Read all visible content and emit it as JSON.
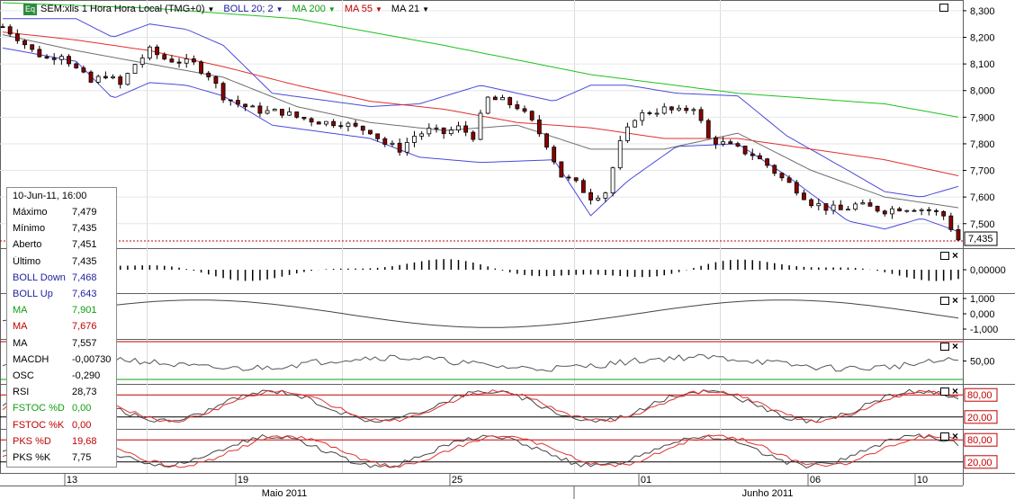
{
  "header": {
    "eq_badge": "Eq",
    "symbol_label": "SEM:xlis 1 Hora Hora Local (TMG+0)",
    "indicators": [
      {
        "label": "BOLL 20; 2",
        "color": "#1f1fa0"
      },
      {
        "label": "MA 200",
        "color": "#10a010"
      },
      {
        "label": "MA 55",
        "color": "#c00000"
      },
      {
        "label": "MA 21",
        "color": "#000000"
      }
    ]
  },
  "info_box": {
    "date": "10-Jun-11, 16:00",
    "rows": [
      {
        "label": "Máximo",
        "value": "7,479",
        "color": "#000000"
      },
      {
        "label": "Mínimo",
        "value": "7,435",
        "color": "#000000"
      },
      {
        "label": "Aberto",
        "value": "7,451",
        "color": "#000000"
      },
      {
        "label": "Último",
        "value": "7,435",
        "color": "#000000"
      },
      {
        "label": "BOLL Down",
        "value": "7,468",
        "color": "#1f1fa0"
      },
      {
        "label": "BOLL Up",
        "value": "7,643",
        "color": "#1f1fa0"
      },
      {
        "label": "MA",
        "value": "7,901",
        "color": "#10a010"
      },
      {
        "label": "MA",
        "value": "7,676",
        "color": "#c00000"
      },
      {
        "label": "MA",
        "value": "7,557",
        "color": "#000000"
      },
      {
        "label": "MACDH",
        "value": "-0,00730",
        "color": "#000000"
      },
      {
        "label": "OSC",
        "value": "-0,290",
        "color": "#000000"
      },
      {
        "label": "RSI",
        "value": "28,73",
        "color": "#000000"
      },
      {
        "label": "FSTOC %D",
        "value": "0,00",
        "color": "#10a010"
      },
      {
        "label": "FSTOC %K",
        "value": "0,00",
        "color": "#c00000"
      },
      {
        "label": "PKS %D",
        "value": "19,68",
        "color": "#c00000"
      },
      {
        "label": "PKS %K",
        "value": "7,75",
        "color": "#000000"
      }
    ]
  },
  "chart_data": [
    {
      "type": "candlestick",
      "panel": "price",
      "y_ticks": [
        "8,300",
        "8,200",
        "8,100",
        "8,000",
        "7,900",
        "7,800",
        "7,700",
        "7,600",
        "7,500"
      ],
      "ylim": [
        7.435,
        8.32
      ],
      "last_price_label": "7,435",
      "last_price": 7.435,
      "x_ticks": [
        "13",
        "19",
        "25",
        "01",
        "06",
        "10"
      ],
      "x_months": [
        "Maio 2011",
        "Junho 2011"
      ],
      "close_path": [
        [
          0,
          8.24
        ],
        [
          6,
          8.2
        ],
        [
          12,
          8.15
        ],
        [
          18,
          8.12
        ],
        [
          24,
          8.14
        ],
        [
          30,
          8.08
        ],
        [
          36,
          8.03
        ],
        [
          42,
          8.06
        ],
        [
          48,
          8.02
        ],
        [
          54,
          8.1
        ],
        [
          60,
          8.15
        ],
        [
          66,
          8.12
        ],
        [
          72,
          8.11
        ],
        [
          78,
          8.1
        ],
        [
          84,
          8.06
        ],
        [
          90,
          7.98
        ],
        [
          96,
          7.95
        ],
        [
          102,
          7.93
        ],
        [
          108,
          7.92
        ],
        [
          114,
          7.92
        ],
        [
          120,
          7.9
        ],
        [
          126,
          7.89
        ],
        [
          132,
          7.88
        ],
        [
          138,
          7.88
        ],
        [
          144,
          7.86
        ],
        [
          150,
          7.85
        ],
        [
          156,
          7.8
        ],
        [
          162,
          7.78
        ],
        [
          168,
          7.83
        ],
        [
          174,
          7.85
        ],
        [
          180,
          7.84
        ],
        [
          186,
          7.86
        ],
        [
          192,
          7.83
        ],
        [
          198,
          7.97
        ],
        [
          204,
          7.96
        ],
        [
          210,
          7.94
        ],
        [
          216,
          7.88
        ],
        [
          222,
          7.8
        ],
        [
          228,
          7.68
        ],
        [
          234,
          7.65
        ],
        [
          240,
          7.6
        ],
        [
          246,
          7.62
        ],
        [
          252,
          7.8
        ],
        [
          258,
          7.9
        ],
        [
          264,
          7.92
        ],
        [
          270,
          7.93
        ],
        [
          276,
          7.92
        ],
        [
          282,
          7.94
        ],
        [
          288,
          7.82
        ],
        [
          294,
          7.8
        ],
        [
          300,
          7.78
        ],
        [
          306,
          7.76
        ],
        [
          312,
          7.72
        ],
        [
          318,
          7.67
        ],
        [
          324,
          7.63
        ],
        [
          330,
          7.58
        ],
        [
          336,
          7.56
        ],
        [
          342,
          7.55
        ],
        [
          348,
          7.57
        ],
        [
          354,
          7.56
        ],
        [
          360,
          7.55
        ],
        [
          366,
          7.56
        ],
        [
          372,
          7.56
        ],
        [
          378,
          7.55
        ],
        [
          384,
          7.53
        ],
        [
          390,
          7.44
        ]
      ],
      "ma21": [
        [
          0,
          8.21
        ],
        [
          30,
          8.15
        ],
        [
          60,
          8.1
        ],
        [
          90,
          8.05
        ],
        [
          120,
          7.94
        ],
        [
          150,
          7.88
        ],
        [
          180,
          7.85
        ],
        [
          210,
          7.87
        ],
        [
          240,
          7.78
        ],
        [
          270,
          7.78
        ],
        [
          300,
          7.84
        ],
        [
          330,
          7.7
        ],
        [
          360,
          7.6
        ],
        [
          390,
          7.56
        ]
      ],
      "ma55": [
        [
          0,
          8.22
        ],
        [
          30,
          8.19
        ],
        [
          60,
          8.15
        ],
        [
          90,
          8.09
        ],
        [
          120,
          8.02
        ],
        [
          150,
          7.96
        ],
        [
          180,
          7.93
        ],
        [
          210,
          7.88
        ],
        [
          240,
          7.86
        ],
        [
          270,
          7.82
        ],
        [
          300,
          7.82
        ],
        [
          330,
          7.78
        ],
        [
          360,
          7.74
        ],
        [
          390,
          7.68
        ]
      ],
      "ma200": [
        [
          0,
          8.33
        ],
        [
          60,
          8.31
        ],
        [
          120,
          8.27
        ],
        [
          180,
          8.17
        ],
        [
          240,
          8.06
        ],
        [
          300,
          7.99
        ],
        [
          360,
          7.95
        ],
        [
          390,
          7.9
        ]
      ],
      "boll_up": [
        [
          0,
          8.27
        ],
        [
          30,
          8.27
        ],
        [
          45,
          8.2
        ],
        [
          60,
          8.25
        ],
        [
          75,
          8.23
        ],
        [
          90,
          8.17
        ],
        [
          110,
          7.99
        ],
        [
          150,
          7.94
        ],
        [
          170,
          7.95
        ],
        [
          195,
          8.02
        ],
        [
          225,
          7.96
        ],
        [
          240,
          8.02
        ],
        [
          255,
          8.02
        ],
        [
          275,
          7.99
        ],
        [
          300,
          7.98
        ],
        [
          320,
          7.83
        ],
        [
          345,
          7.7
        ],
        [
          360,
          7.62
        ],
        [
          375,
          7.6
        ],
        [
          390,
          7.64
        ]
      ],
      "boll_down": [
        [
          0,
          8.16
        ],
        [
          30,
          8.11
        ],
        [
          45,
          7.97
        ],
        [
          60,
          8.03
        ],
        [
          75,
          8.02
        ],
        [
          90,
          7.98
        ],
        [
          110,
          7.87
        ],
        [
          150,
          7.82
        ],
        [
          170,
          7.75
        ],
        [
          195,
          7.73
        ],
        [
          225,
          7.74
        ],
        [
          240,
          7.53
        ],
        [
          255,
          7.66
        ],
        [
          275,
          7.79
        ],
        [
          300,
          7.8
        ],
        [
          320,
          7.68
        ],
        [
          345,
          7.51
        ],
        [
          360,
          7.48
        ],
        [
          375,
          7.52
        ],
        [
          390,
          7.47
        ]
      ]
    },
    {
      "type": "histogram",
      "panel": "MACDH",
      "y_ticks": [
        "0,00000"
      ],
      "ylim": [
        -1,
        1
      ]
    },
    {
      "type": "line",
      "panel": "OSC",
      "y_ticks": [
        "1,000",
        "0,000",
        "-1,000"
      ],
      "ylim": [
        -1.2,
        1.2
      ]
    },
    {
      "type": "line",
      "panel": "RSI",
      "y_ticks": [
        "50,00"
      ],
      "ylim": [
        0,
        100
      ]
    },
    {
      "type": "line",
      "panel": "FSTOC",
      "y_ticks": [
        "80,00",
        "20,00"
      ],
      "ylim": [
        0,
        100
      ]
    },
    {
      "type": "line",
      "panel": "PKS",
      "y_ticks": [
        "80,00",
        "20,00"
      ],
      "ylim": [
        0,
        100
      ]
    }
  ]
}
